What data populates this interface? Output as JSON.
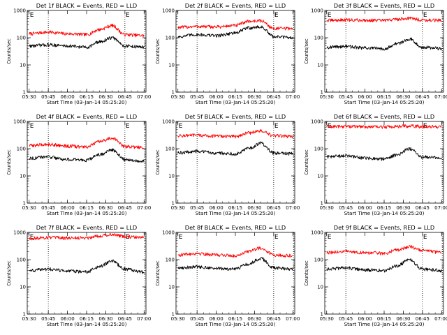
{
  "chart_data": [
    {
      "type": "line",
      "title": "Det 1f BLACK = Events, RED = LLD",
      "xlabel": "Start Time (03-Jan-14 05:25:20)",
      "ylabel": "Counts/sec",
      "yscale": "log",
      "ylim": [
        1,
        1000
      ],
      "yticks": [
        "1",
        "10",
        "100",
        "1000"
      ],
      "xticks": [
        "05:30",
        "05:45",
        "06:00",
        "06:15",
        "06:30",
        "06:45",
        "07:00"
      ],
      "event_markers": [
        {
          "x": "05:30",
          "label": "E"
        },
        {
          "x": "06:45",
          "label": "E"
        }
      ],
      "annotation": "",
      "series": [
        {
          "color": "#ff0000",
          "x": [
            "05:30",
            "05:45",
            "06:00",
            "06:15",
            "06:25",
            "06:35",
            "06:45",
            "07:00"
          ],
          "values": [
            140,
            160,
            140,
            130,
            200,
            280,
            130,
            120
          ]
        },
        {
          "color": "#000000",
          "x": [
            "05:30",
            "05:45",
            "06:00",
            "06:15",
            "06:25",
            "06:35",
            "06:45",
            "07:00"
          ],
          "values": [
            50,
            55,
            50,
            45,
            70,
            100,
            50,
            45
          ]
        }
      ]
    },
    {
      "type": "line",
      "title": "Det 2f BLACK = Events, RED = LLD",
      "xlabel": "Start Time (03-Jan-14 05:25:20)",
      "ylabel": "Counts/sec",
      "yscale": "log",
      "ylim": [
        1,
        1000
      ],
      "yticks": [
        "1",
        "10",
        "100",
        "1000"
      ],
      "xticks": [
        "05:30",
        "05:45",
        "06:00",
        "06:15",
        "06:30",
        "06:45",
        "07:00"
      ],
      "event_markers": [
        {
          "x": "06:45",
          "label": "E"
        }
      ],
      "annotation": "F",
      "series": [
        {
          "color": "#ff0000",
          "x": [
            "05:30",
            "05:45",
            "06:00",
            "06:15",
            "06:25",
            "06:35",
            "06:45",
            "07:00"
          ],
          "values": [
            240,
            260,
            250,
            280,
            400,
            420,
            220,
            220
          ]
        },
        {
          "color": "#000000",
          "x": [
            "05:30",
            "05:45",
            "06:00",
            "06:15",
            "06:25",
            "06:35",
            "06:45",
            "07:00"
          ],
          "values": [
            110,
            130,
            120,
            150,
            230,
            250,
            110,
            100
          ]
        }
      ]
    },
    {
      "type": "line",
      "title": "Det 3f BLACK = Events, RED = LLD",
      "xlabel": "Start Time (03-Jan-14 05:25:20)",
      "ylabel": "Counts/sec",
      "yscale": "log",
      "ylim": [
        1,
        1000
      ],
      "yticks": [
        "1",
        "10",
        "100",
        "1000"
      ],
      "xticks": [
        "05:30",
        "05:45",
        "06:00",
        "06:15",
        "06:30",
        "06:45",
        "07:00"
      ],
      "event_markers": [
        {
          "x": "05:30",
          "label": "E"
        },
        {
          "x": "06:45",
          "label": "E"
        }
      ],
      "annotation": "",
      "series": [
        {
          "color": "#ff0000",
          "x": [
            "05:30",
            "05:45",
            "06:00",
            "06:15",
            "06:25",
            "06:35",
            "06:45",
            "07:00"
          ],
          "values": [
            430,
            450,
            440,
            430,
            480,
            520,
            450,
            430
          ]
        },
        {
          "color": "#000000",
          "x": [
            "05:30",
            "05:45",
            "06:00",
            "06:15",
            "06:25",
            "06:35",
            "06:45",
            "07:00"
          ],
          "values": [
            45,
            48,
            42,
            40,
            60,
            90,
            45,
            40
          ]
        }
      ]
    },
    {
      "type": "line",
      "title": "Det 4f BLACK = Events, RED = LLD",
      "xlabel": "Start Time (03-Jan-14 05:25:20)",
      "ylabel": "Counts/sec",
      "yscale": "log",
      "ylim": [
        1,
        1000
      ],
      "yticks": [
        "1",
        "10",
        "100",
        "1000"
      ],
      "xticks": [
        "05:30",
        "05:45",
        "06:00",
        "06:15",
        "06:30",
        "06:45",
        "07:00"
      ],
      "event_markers": [
        {
          "x": "05:30",
          "label": "E"
        },
        {
          "x": "06:45",
          "label": "E"
        }
      ],
      "annotation": "",
      "series": [
        {
          "color": "#ff0000",
          "x": [
            "05:30",
            "05:45",
            "06:00",
            "06:15",
            "06:25",
            "06:35",
            "06:45",
            "07:00"
          ],
          "values": [
            130,
            145,
            125,
            115,
            180,
            250,
            120,
            110
          ]
        },
        {
          "color": "#000000",
          "x": [
            "05:30",
            "05:45",
            "06:00",
            "06:15",
            "06:25",
            "06:35",
            "06:45",
            "07:00"
          ],
          "values": [
            45,
            50,
            40,
            38,
            60,
            90,
            40,
            35
          ]
        }
      ]
    },
    {
      "type": "line",
      "title": "Det 5f BLACK = Events, RED = LLD",
      "xlabel": "Start Time (03-Jan-14 05:25:20)",
      "ylabel": "Counts/sec",
      "yscale": "log",
      "ylim": [
        1,
        1000
      ],
      "yticks": [
        "1",
        "10",
        "100",
        "1000"
      ],
      "xticks": [
        "05:30",
        "05:45",
        "06:00",
        "06:15",
        "06:30",
        "06:45",
        "07:00"
      ],
      "event_markers": [
        {
          "x": "05:30",
          "label": "E"
        },
        {
          "x": "06:45",
          "label": "E"
        }
      ],
      "annotation": "",
      "series": [
        {
          "color": "#ff0000",
          "x": [
            "05:30",
            "05:45",
            "06:00",
            "06:15",
            "06:25",
            "06:35",
            "06:45",
            "07:00"
          ],
          "values": [
            300,
            310,
            290,
            280,
            380,
            450,
            300,
            280
          ]
        },
        {
          "color": "#000000",
          "x": [
            "05:30",
            "05:45",
            "06:00",
            "06:15",
            "06:25",
            "06:35",
            "06:45",
            "07:00"
          ],
          "values": [
            70,
            80,
            70,
            65,
            100,
            160,
            70,
            65
          ]
        }
      ]
    },
    {
      "type": "line",
      "title": "Det 6f BLACK = Events, RED = LLD",
      "xlabel": "Start Time (03-Jan-14 05:25:20)",
      "ylabel": "Counts/sec",
      "yscale": "log",
      "ylim": [
        1,
        1000
      ],
      "yticks": [
        "1",
        "10",
        "100",
        "1000"
      ],
      "xticks": [
        "05:30",
        "05:45",
        "06:00",
        "06:15",
        "06:30",
        "06:45",
        "07:00"
      ],
      "event_markers": [
        {
          "x": "05:30",
          "label": "E"
        },
        {
          "x": "06:45",
          "label": "E"
        }
      ],
      "annotation": "",
      "series": [
        {
          "color": "#ff0000",
          "x": [
            "05:30",
            "05:45",
            "06:00",
            "06:15",
            "06:25",
            "06:35",
            "06:45",
            "07:00"
          ],
          "values": [
            650,
            660,
            640,
            630,
            660,
            680,
            650,
            640
          ]
        },
        {
          "color": "#000000",
          "x": [
            "05:30",
            "05:45",
            "06:00",
            "06:15",
            "06:25",
            "06:35",
            "06:45",
            "07:00"
          ],
          "values": [
            50,
            55,
            45,
            42,
            60,
            100,
            50,
            45
          ]
        }
      ]
    },
    {
      "type": "line",
      "title": "Det 7f BLACK = Events, RED = LLD",
      "xlabel": "Start Time (03-Jan-14 05:25:20)",
      "ylabel": "Counts/sec",
      "yscale": "log",
      "ylim": [
        1,
        1000
      ],
      "yticks": [
        "1",
        "10",
        "100",
        "1000"
      ],
      "xticks": [
        "05:30",
        "05:45",
        "06:00",
        "06:15",
        "06:30",
        "06:45",
        "07:00"
      ],
      "event_markers": [
        {
          "x": "05:30",
          "label": "E"
        },
        {
          "x": "06:45",
          "label": "E"
        }
      ],
      "annotation": "",
      "series": [
        {
          "color": "#ff0000",
          "x": [
            "05:30",
            "05:45",
            "06:00",
            "06:15",
            "06:25",
            "06:35",
            "06:45",
            "07:00"
          ],
          "values": [
            600,
            650,
            620,
            640,
            750,
            850,
            700,
            650
          ]
        },
        {
          "color": "#000000",
          "x": [
            "05:30",
            "05:45",
            "06:00",
            "06:15",
            "06:25",
            "06:35",
            "06:45",
            "07:00"
          ],
          "values": [
            40,
            45,
            38,
            36,
            55,
            90,
            45,
            35
          ]
        }
      ]
    },
    {
      "type": "line",
      "title": "Det 8f BLACK = Events, RED = LLD",
      "xlabel": "Start Time (03-Jan-14 05:25:20)",
      "ylabel": "Counts/sec",
      "yscale": "log",
      "ylim": [
        1,
        1000
      ],
      "yticks": [
        "1",
        "10",
        "100",
        "1000"
      ],
      "xticks": [
        "05:30",
        "05:45",
        "06:00",
        "06:15",
        "06:30",
        "06:45",
        "07:00"
      ],
      "event_markers": [
        {
          "x": "05:30",
          "label": "E"
        },
        {
          "x": "06:45",
          "label": "E"
        }
      ],
      "annotation": "",
      "series": [
        {
          "color": "#ff0000",
          "x": [
            "05:30",
            "05:45",
            "06:00",
            "06:15",
            "06:25",
            "06:35",
            "06:45",
            "07:00"
          ],
          "values": [
            150,
            170,
            150,
            140,
            200,
            270,
            150,
            140
          ]
        },
        {
          "color": "#000000",
          "x": [
            "05:30",
            "05:45",
            "06:00",
            "06:15",
            "06:25",
            "06:35",
            "06:45",
            "07:00"
          ],
          "values": [
            50,
            55,
            48,
            45,
            70,
            110,
            50,
            45
          ]
        }
      ]
    },
    {
      "type": "line",
      "title": "Det 9f BLACK = Events, RED = LLD",
      "xlabel": "Start Time (03-Jan-14 05:25:20)",
      "ylabel": "Counts/sec",
      "yscale": "log",
      "ylim": [
        1,
        1000
      ],
      "yticks": [
        "1",
        "10",
        "100",
        "1000"
      ],
      "xticks": [
        "05:30",
        "05:45",
        "06:00",
        "06:15",
        "06:30",
        "06:45",
        "07:00"
      ],
      "event_markers": [
        {
          "x": "05:30",
          "label": "E"
        },
        {
          "x": "06:45",
          "label": "E"
        }
      ],
      "annotation": "",
      "series": [
        {
          "color": "#ff0000",
          "x": [
            "05:30",
            "05:45",
            "06:00",
            "06:15",
            "06:25",
            "06:35",
            "06:45",
            "07:00"
          ],
          "values": [
            180,
            200,
            180,
            170,
            230,
            300,
            220,
            180
          ]
        },
        {
          "color": "#000000",
          "x": [
            "05:30",
            "05:45",
            "06:00",
            "06:15",
            "06:25",
            "06:35",
            "06:45",
            "07:00"
          ],
          "values": [
            45,
            50,
            42,
            40,
            60,
            100,
            45,
            40
          ]
        }
      ]
    }
  ]
}
